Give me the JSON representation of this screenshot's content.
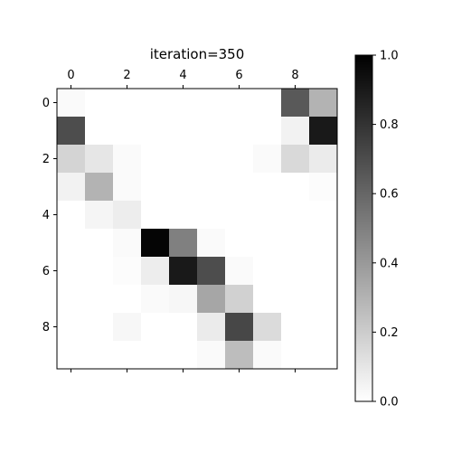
{
  "chart_data": {
    "type": "heatmap",
    "title": "iteration=350",
    "x_ticks": [
      "0",
      "2",
      "4",
      "6",
      "8"
    ],
    "x_tick_positions": [
      0,
      2,
      4,
      6,
      8
    ],
    "y_ticks": [
      "0",
      "2",
      "4",
      "6",
      "8"
    ],
    "y_tick_positions": [
      0,
      2,
      4,
      6,
      8
    ],
    "rows": 10,
    "cols": 10,
    "colormap": "gray_r",
    "vmin": 0.0,
    "vmax": 1.0,
    "colorbar_ticks": [
      "0.0",
      "0.2",
      "0.4",
      "0.6",
      "0.8",
      "1.0"
    ],
    "colorbar_tick_values": [
      0.0,
      0.2,
      0.4,
      0.6,
      0.8,
      1.0
    ],
    "values": [
      [
        0.02,
        0.0,
        0.0,
        0.0,
        0.0,
        0.0,
        0.0,
        0.0,
        0.65,
        0.3
      ],
      [
        0.7,
        0.0,
        0.0,
        0.0,
        0.0,
        0.0,
        0.0,
        0.0,
        0.05,
        0.9
      ],
      [
        0.17,
        0.1,
        0.02,
        0.0,
        0.0,
        0.0,
        0.0,
        0.02,
        0.15,
        0.08
      ],
      [
        0.05,
        0.3,
        0.02,
        0.0,
        0.0,
        0.0,
        0.0,
        0.0,
        0.0,
        0.01
      ],
      [
        0.0,
        0.04,
        0.07,
        0.0,
        0.0,
        0.0,
        0.0,
        0.0,
        0.0,
        0.0
      ],
      [
        0.0,
        0.0,
        0.02,
        0.98,
        0.5,
        0.02,
        0.0,
        0.0,
        0.0,
        0.0
      ],
      [
        0.0,
        0.0,
        0.01,
        0.07,
        0.9,
        0.7,
        0.02,
        0.0,
        0.0,
        0.0
      ],
      [
        0.0,
        0.0,
        0.0,
        0.02,
        0.03,
        0.35,
        0.18,
        0.0,
        0.0,
        0.0
      ],
      [
        0.0,
        0.0,
        0.03,
        0.0,
        0.0,
        0.08,
        0.72,
        0.14,
        0.0,
        0.0
      ],
      [
        0.0,
        0.0,
        0.0,
        0.0,
        0.0,
        0.02,
        0.26,
        0.02,
        0.0,
        0.0
      ]
    ]
  }
}
